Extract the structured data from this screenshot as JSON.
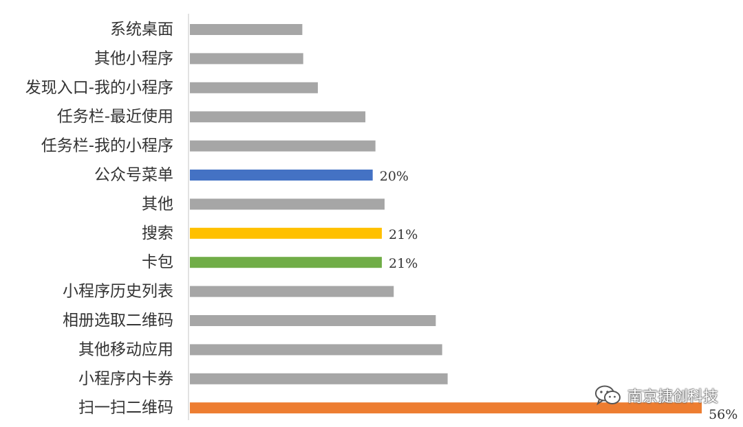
{
  "chart_data": {
    "type": "bar",
    "orientation": "horizontal",
    "categories": [
      "系统桌面",
      "其他小程序",
      "发现入口-我的小程序",
      "任务栏-最近使用",
      "任务栏-我的小程序",
      "公众号菜单",
      "其他",
      "搜索",
      "卡包",
      "小程序历史列表",
      "相册选取二维码",
      "其他移动应用",
      "小程序内卡券",
      "扫一扫二维码"
    ],
    "values": [
      12.3,
      12.4,
      14.0,
      19.2,
      20.3,
      20,
      21.3,
      21,
      21,
      22.3,
      26.9,
      27.6,
      28.2,
      56
    ],
    "data_labels": [
      "",
      "",
      "",
      "",
      "",
      "20%",
      "",
      "21%",
      "21%",
      "",
      "",
      "",
      "",
      "56%"
    ],
    "colors": [
      "#a6a6a6",
      "#a6a6a6",
      "#a6a6a6",
      "#a6a6a6",
      "#a6a6a6",
      "#4472c4",
      "#a6a6a6",
      "#ffc000",
      "#70ad47",
      "#a6a6a6",
      "#a6a6a6",
      "#a6a6a6",
      "#a6a6a6",
      "#ed7d31"
    ],
    "xlim": [
      0,
      57.5
    ],
    "grid": false,
    "legend": "none",
    "title": "",
    "xlabel": "",
    "ylabel": ""
  },
  "watermark": {
    "text": "南京捷创科技",
    "icon": "wechat-icon"
  }
}
